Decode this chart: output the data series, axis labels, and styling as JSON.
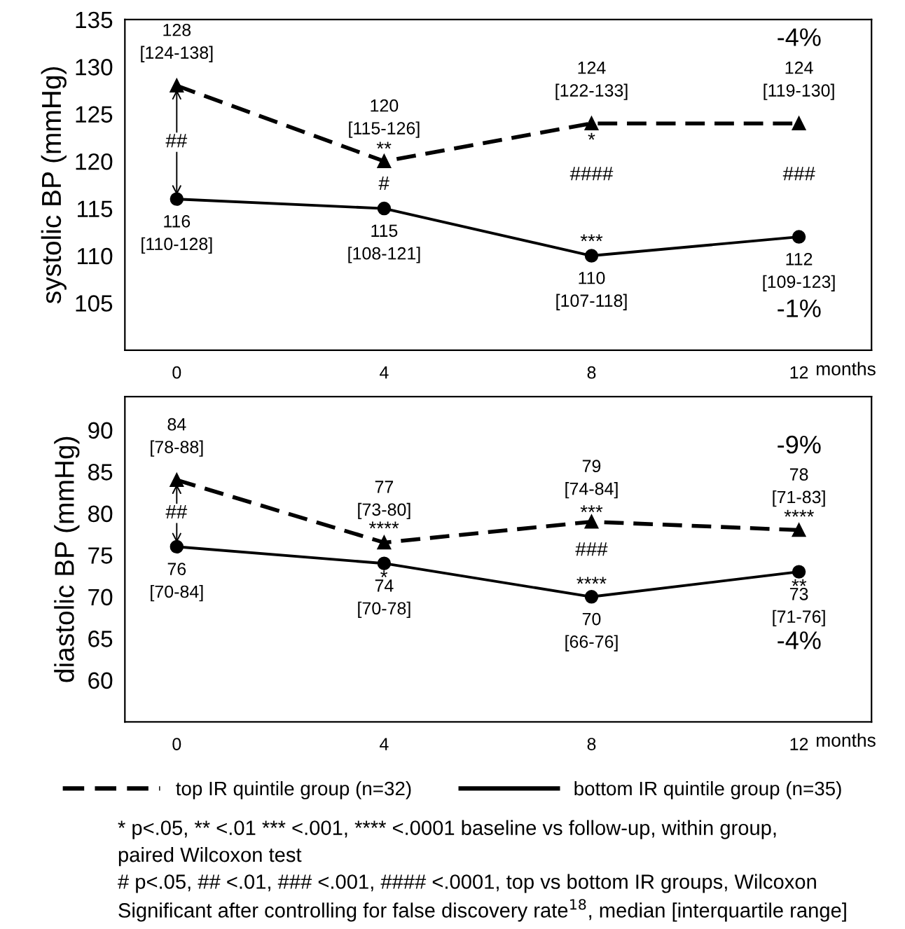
{
  "chart_data": [
    {
      "type": "line",
      "ylabel": "systolic BP (mmHg)",
      "xlabel": "months",
      "x": [
        0,
        4,
        8,
        12
      ],
      "xlim": [
        -1,
        13.4
      ],
      "xticks": [
        0,
        4,
        8,
        12
      ],
      "ylim": [
        100,
        135
      ],
      "yticks": [
        105,
        110,
        115,
        120,
        125,
        130,
        135
      ],
      "grid": false,
      "legend": false,
      "series": [
        {
          "color": "#000000",
          "line_style": "dashed",
          "marker": "triangle",
          "values": [
            128,
            120,
            124,
            124
          ],
          "value_labels": [
            "128\n[124-138]",
            "120\n[115-126]",
            "124\n[122-133]",
            "124\n[119-130]"
          ]
        },
        {
          "color": "#000000",
          "line_style": "solid",
          "marker": "circle",
          "values": [
            116,
            115,
            110,
            112
          ],
          "value_labels": [
            "116\n[110-128]",
            "115\n[108-121]",
            "110\n[107-118]",
            "112\n[109-123]"
          ]
        }
      ],
      "annotations": [
        "##",
        "**",
        "#",
        "*",
        "####",
        "***",
        "###",
        "-4%",
        "-1%"
      ]
    },
    {
      "type": "line",
      "ylabel": "diastolic BP (mmHg)",
      "xlabel": "months",
      "x": [
        0,
        4,
        8,
        12
      ],
      "xlim": [
        -1,
        13.4
      ],
      "xticks": [
        0,
        4,
        8,
        12
      ],
      "ylim": [
        55,
        94
      ],
      "yticks": [
        60,
        65,
        70,
        75,
        80,
        85,
        90
      ],
      "grid": false,
      "legend": "bottom",
      "series": [
        {
          "name": "top IR quintile group (n=32)",
          "color": "#000000",
          "line_style": "dashed",
          "marker": "triangle",
          "values": [
            84,
            76.5,
            79,
            78
          ],
          "value_labels": [
            "84\n[78-88]",
            "77\n[73-80]",
            "79\n[74-84]",
            "78\n[71-83]"
          ]
        },
        {
          "name": "bottom IR quintile group (n=35)",
          "color": "#000000",
          "line_style": "solid",
          "marker": "circle",
          "values": [
            76,
            74,
            70,
            73
          ],
          "value_labels": [
            "76\n[70-84]",
            "74\n[70-78]",
            "70\n[66-76]",
            "73\n[71-76]"
          ]
        }
      ],
      "annotations": [
        "##",
        "****",
        "*",
        "***",
        "###",
        "****",
        "****",
        "**",
        "-9%",
        "-4%",
        "* p<.05, ** <.01 *** <.001, **** <.0001 baseline vs follow-up, within group,",
        "paired Wilcoxon test",
        "# p<.05, ## <.01, ### <.001, #### <.0001, top vs bottom IR groups, Wilcoxon",
        "Significant after controlling for false discovery rate$^{18}$, median [interquartile range]"
      ]
    }
  ]
}
